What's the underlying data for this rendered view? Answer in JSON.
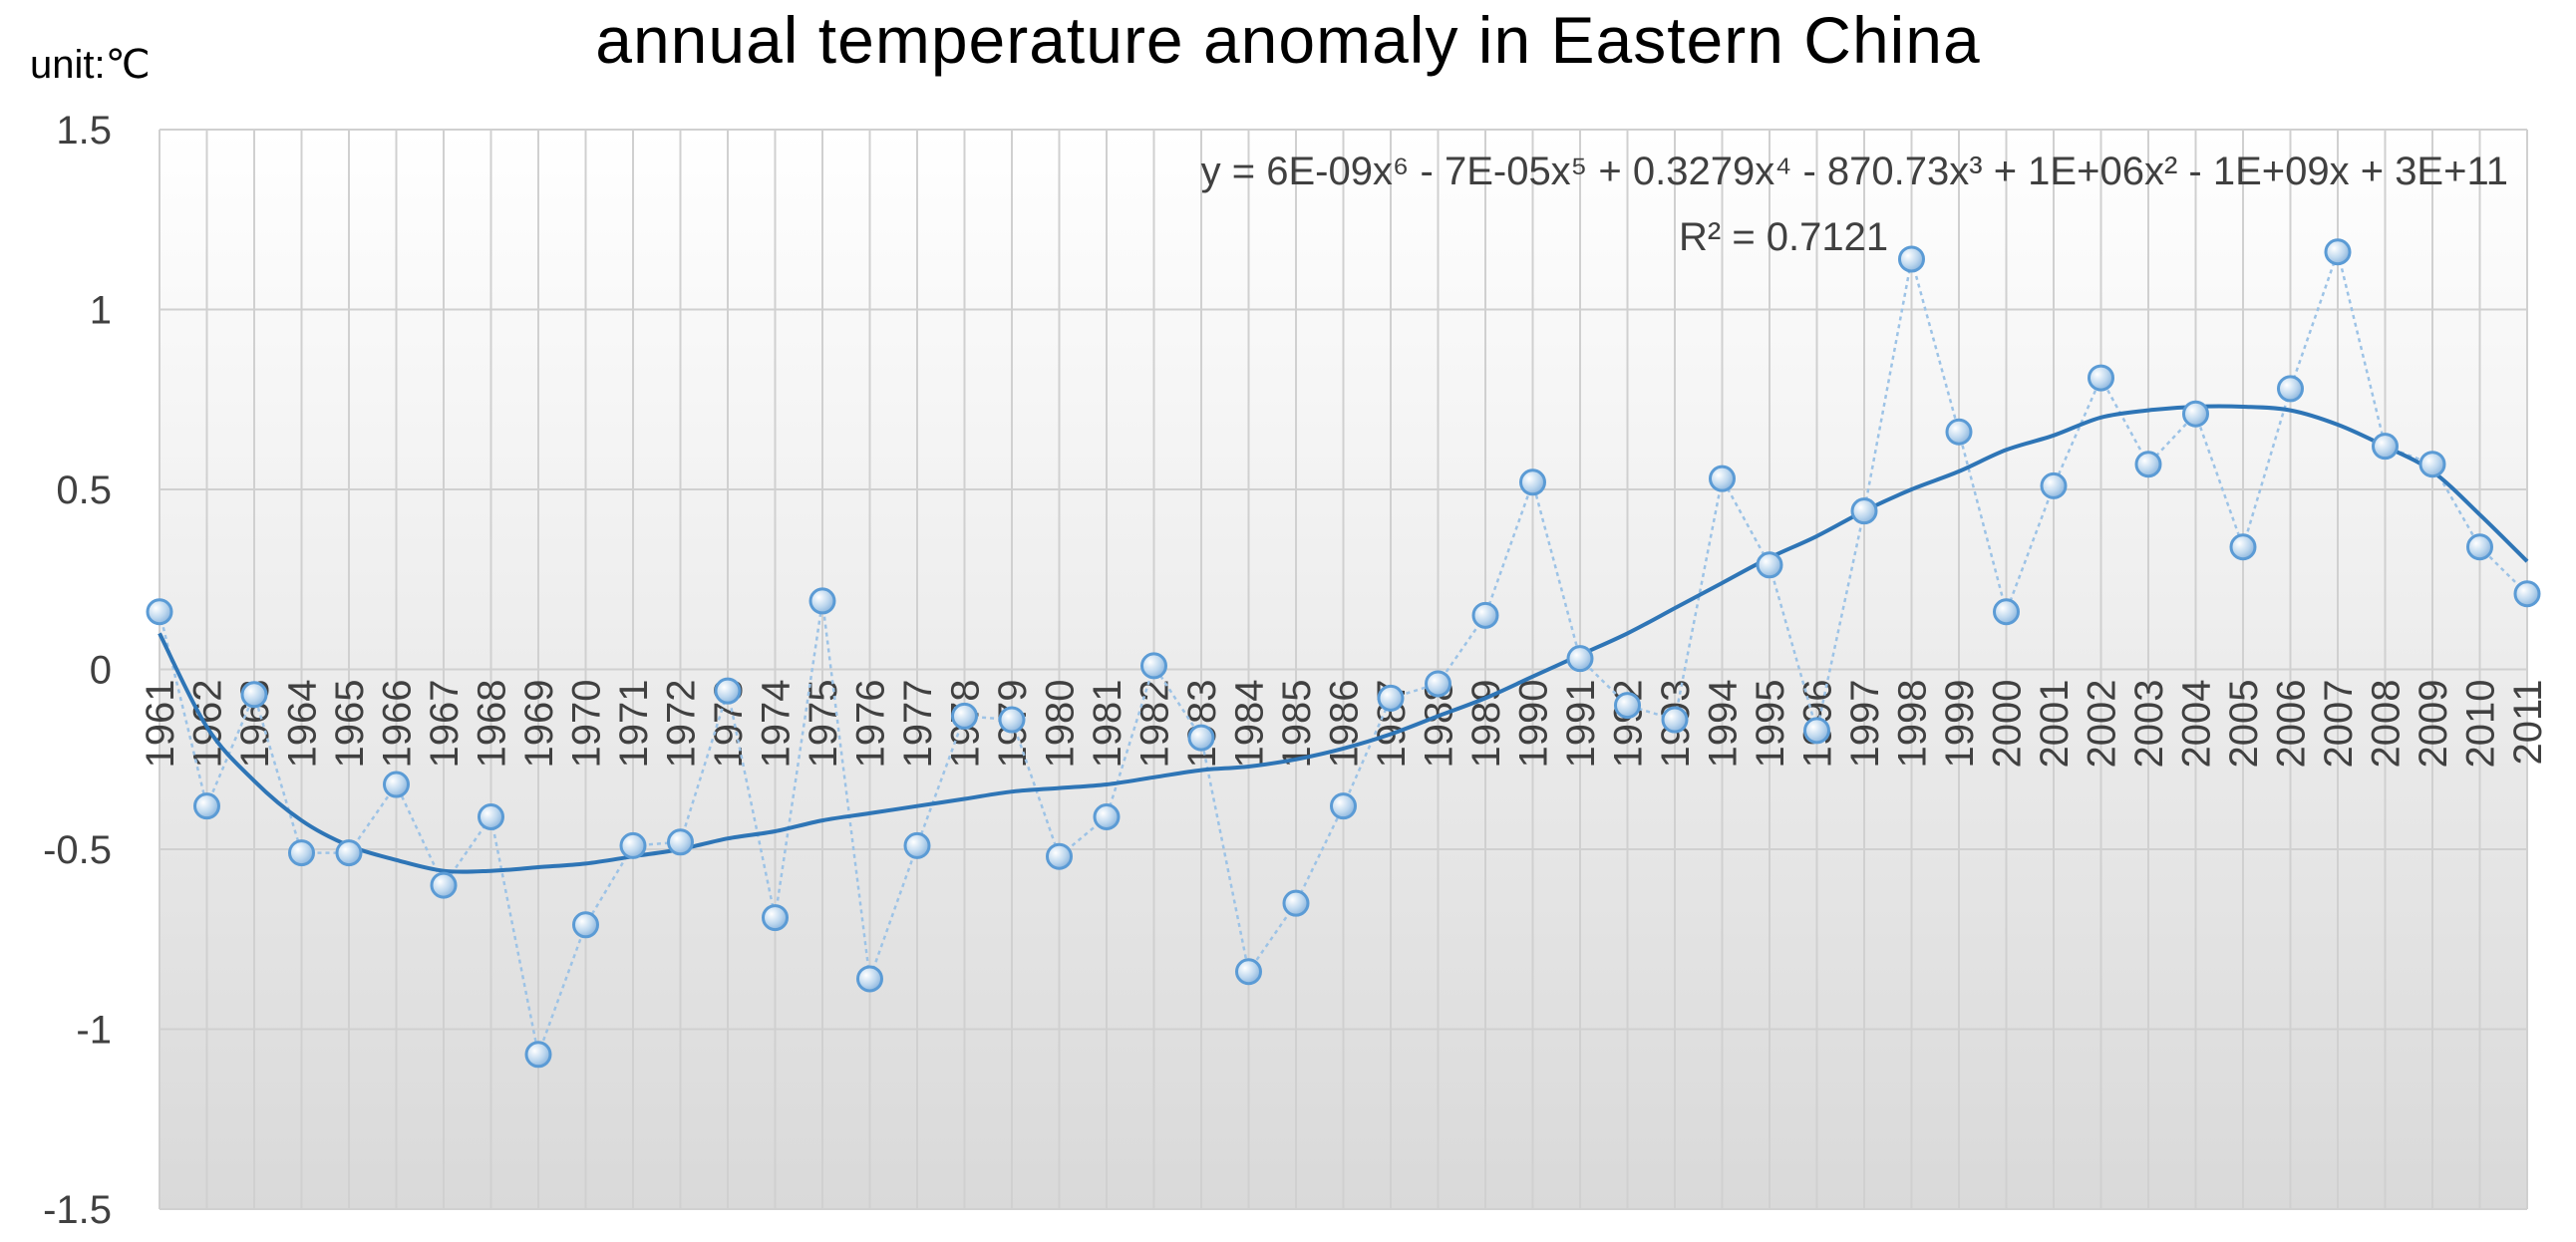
{
  "chart_data": {
    "type": "line",
    "title": "annual  temperature anomaly in Eastern China",
    "unit_label": "unit:℃",
    "xlabel": "",
    "ylabel": "",
    "ylim": [
      -1.5,
      1.5
    ],
    "yticks": [
      -1.5,
      -1,
      -0.5,
      0,
      0.5,
      1,
      1.5
    ],
    "ytick_labels": [
      "-1.5",
      "-1",
      "-0.5",
      "0",
      "0.5",
      "1",
      "1.5"
    ],
    "categories": [
      "1961",
      "1962",
      "1963",
      "1964",
      "1965",
      "1966",
      "1967",
      "1968",
      "1969",
      "1970",
      "1971",
      "1972",
      "1973",
      "1974",
      "1975",
      "1976",
      "1977",
      "1978",
      "1979",
      "1980",
      "1981",
      "1982",
      "1983",
      "1984",
      "1985",
      "1986",
      "1987",
      "1988",
      "1989",
      "1990",
      "1991",
      "1992",
      "1993",
      "1994",
      "1995",
      "1996",
      "1997",
      "1998",
      "1999",
      "2000",
      "2001",
      "2002",
      "2003",
      "2004",
      "2005",
      "2006",
      "2007",
      "2008",
      "2009",
      "2010",
      "2011"
    ],
    "series": [
      {
        "name": "temperature anomaly",
        "values": [
          0.16,
          -0.38,
          -0.07,
          -0.51,
          -0.51,
          -0.32,
          -0.6,
          -0.41,
          -1.07,
          -0.71,
          -0.49,
          -0.48,
          -0.06,
          -0.69,
          0.19,
          -0.86,
          -0.49,
          -0.13,
          -0.14,
          -0.52,
          -0.41,
          0.01,
          -0.19,
          -0.84,
          -0.65,
          -0.38,
          -0.08,
          -0.04,
          0.15,
          0.52,
          0.03,
          -0.1,
          -0.14,
          0.53,
          0.29,
          -0.17,
          0.44,
          1.14,
          0.66,
          0.16,
          0.51,
          0.81,
          0.57,
          0.71,
          0.34,
          0.78,
          1.16,
          0.62,
          0.57,
          0.34,
          0.21
        ],
        "color": "#5b9bd5"
      }
    ],
    "trendline": {
      "type": "polynomial",
      "order": 6,
      "equation": "y = 6E-09x⁶ - 7E-05x⁵ + 0.3279x⁴ - 870.73x³ + 1E+06x² - 1E+09x + 3E+11",
      "r_squared_label": "R² = 0.7121",
      "values": [
        0.1,
        -0.16,
        -0.31,
        -0.42,
        -0.49,
        -0.53,
        -0.56,
        -0.56,
        -0.55,
        -0.54,
        -0.52,
        -0.5,
        -0.47,
        -0.45,
        -0.42,
        -0.4,
        -0.38,
        -0.36,
        -0.34,
        -0.33,
        -0.32,
        -0.3,
        -0.28,
        -0.27,
        -0.25,
        -0.22,
        -0.18,
        -0.13,
        -0.08,
        -0.02,
        0.04,
        0.1,
        0.17,
        0.24,
        0.31,
        0.37,
        0.44,
        0.5,
        0.55,
        0.61,
        0.65,
        0.7,
        0.72,
        0.73,
        0.73,
        0.72,
        0.68,
        0.62,
        0.55,
        0.43,
        0.3
      ],
      "color": "#2e75b6"
    },
    "grid": true,
    "legend": "none"
  }
}
